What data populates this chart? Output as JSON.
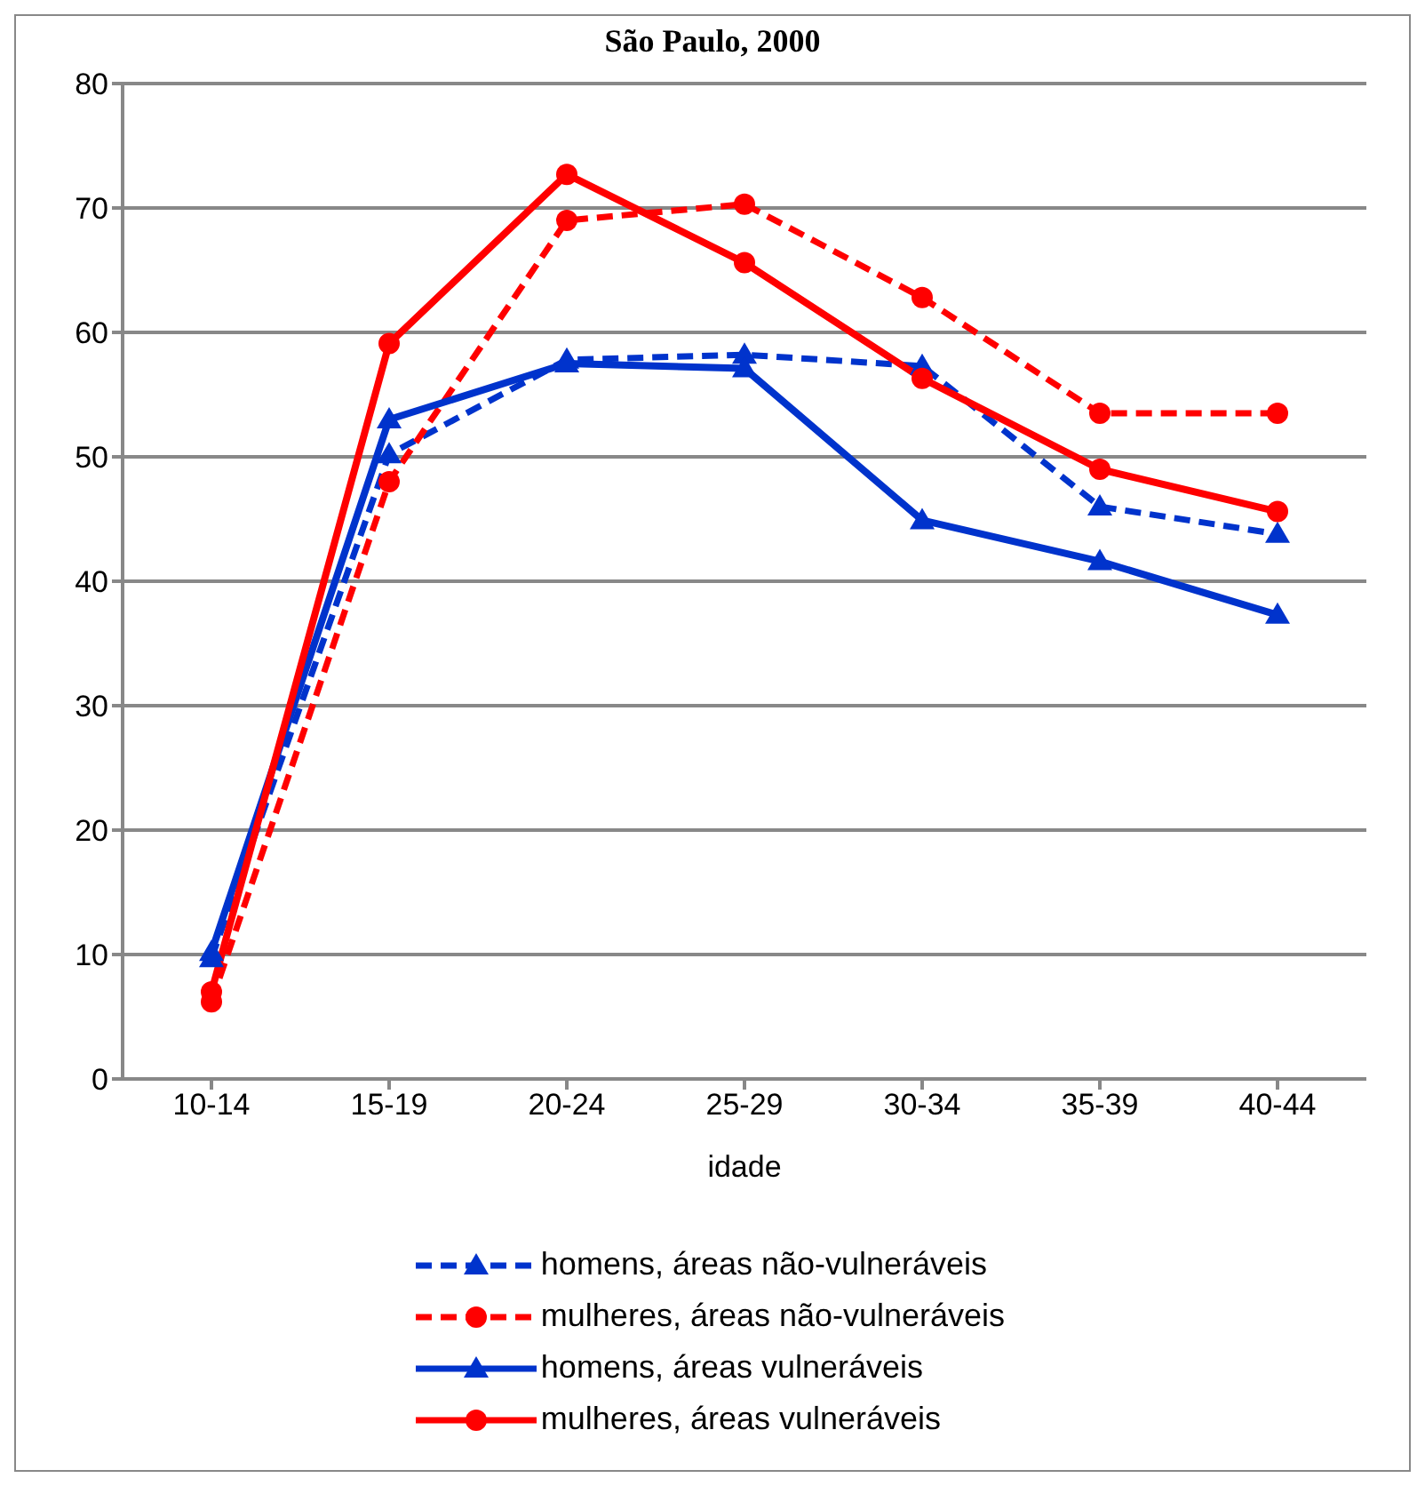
{
  "chart_data": {
    "type": "line",
    "title": "São Paulo, 2000",
    "xlabel": "idade",
    "categories": [
      "10-14",
      "15-19",
      "20-24",
      "25-29",
      "30-34",
      "35-39",
      "40-44"
    ],
    "ylim": [
      0,
      80
    ],
    "yticks": [
      0,
      10,
      20,
      30,
      40,
      50,
      60,
      70,
      80
    ],
    "grid": "y",
    "legend": "bottom",
    "series": [
      {
        "name": "homens, áreas  não-vulneráveis",
        "color": "#0033cc",
        "line_style": "dashed",
        "marker": "triangle",
        "values": [
          9.7,
          50.2,
          57.8,
          58.2,
          57.3,
          46,
          43.8
        ]
      },
      {
        "name": "mulheres, áreas  não-vulneráveis",
        "color": "#ff0000",
        "line_style": "dashed",
        "marker": "circle",
        "values": [
          6.2,
          48,
          69,
          70.3,
          62.8,
          53.5,
          53.5
        ]
      },
      {
        "name": "homens, áreas  vulneráveis",
        "color": "#0033cc",
        "line_style": "solid",
        "marker": "triangle",
        "values": [
          10.2,
          53,
          57.5,
          57.1,
          44.9,
          41.6,
          37.3
        ]
      },
      {
        "name": "mulheres, áreas  vulneráveis",
        "color": "#ff0000",
        "line_style": "solid",
        "marker": "circle",
        "values": [
          7,
          59.1,
          72.7,
          65.6,
          56.3,
          49,
          45.6
        ]
      }
    ]
  }
}
